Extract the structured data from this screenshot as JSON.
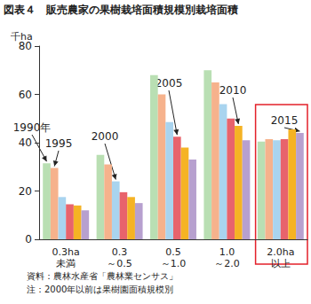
{
  "chart_data": {
    "type": "bar",
    "title": "図表４　販売農家の果樹栽培面積規模別栽培面積",
    "y_label": "千ha",
    "categories": [
      "0.3ha\n未満",
      "0.3\n～0.5",
      "0.5\n～1.0",
      "1.0\n～2.0",
      "2.0ha\n以上"
    ],
    "series": [
      {
        "name": "1990年",
        "color": "#b9dfb3",
        "values": [
          31.5,
          35,
          68,
          70,
          40.5
        ]
      },
      {
        "name": "1995",
        "color": "#f6b28c",
        "values": [
          29.5,
          31,
          60,
          65,
          41.5
        ]
      },
      {
        "name": "2000",
        "color": "#a9d4ef",
        "values": [
          17.5,
          24,
          48.5,
          56,
          41
        ]
      },
      {
        "name": "2005",
        "color": "#e8636c",
        "values": [
          14.5,
          19.5,
          42.5,
          50,
          41.5
        ]
      },
      {
        "name": "2010",
        "color": "#f5b324",
        "values": [
          14,
          17.5,
          38,
          47,
          45.5
        ]
      },
      {
        "name": "2015",
        "color": "#b7a0cf",
        "values": [
          12,
          15,
          33,
          41,
          44
        ]
      }
    ],
    "ylim": [
      0,
      80
    ],
    "yticks": [
      0,
      20,
      40,
      60,
      80
    ],
    "grid": false,
    "notes": [
      "資料：農林水産省「農林業センサス」",
      "注：2000年以前は果樹園面積規模別"
    ]
  }
}
